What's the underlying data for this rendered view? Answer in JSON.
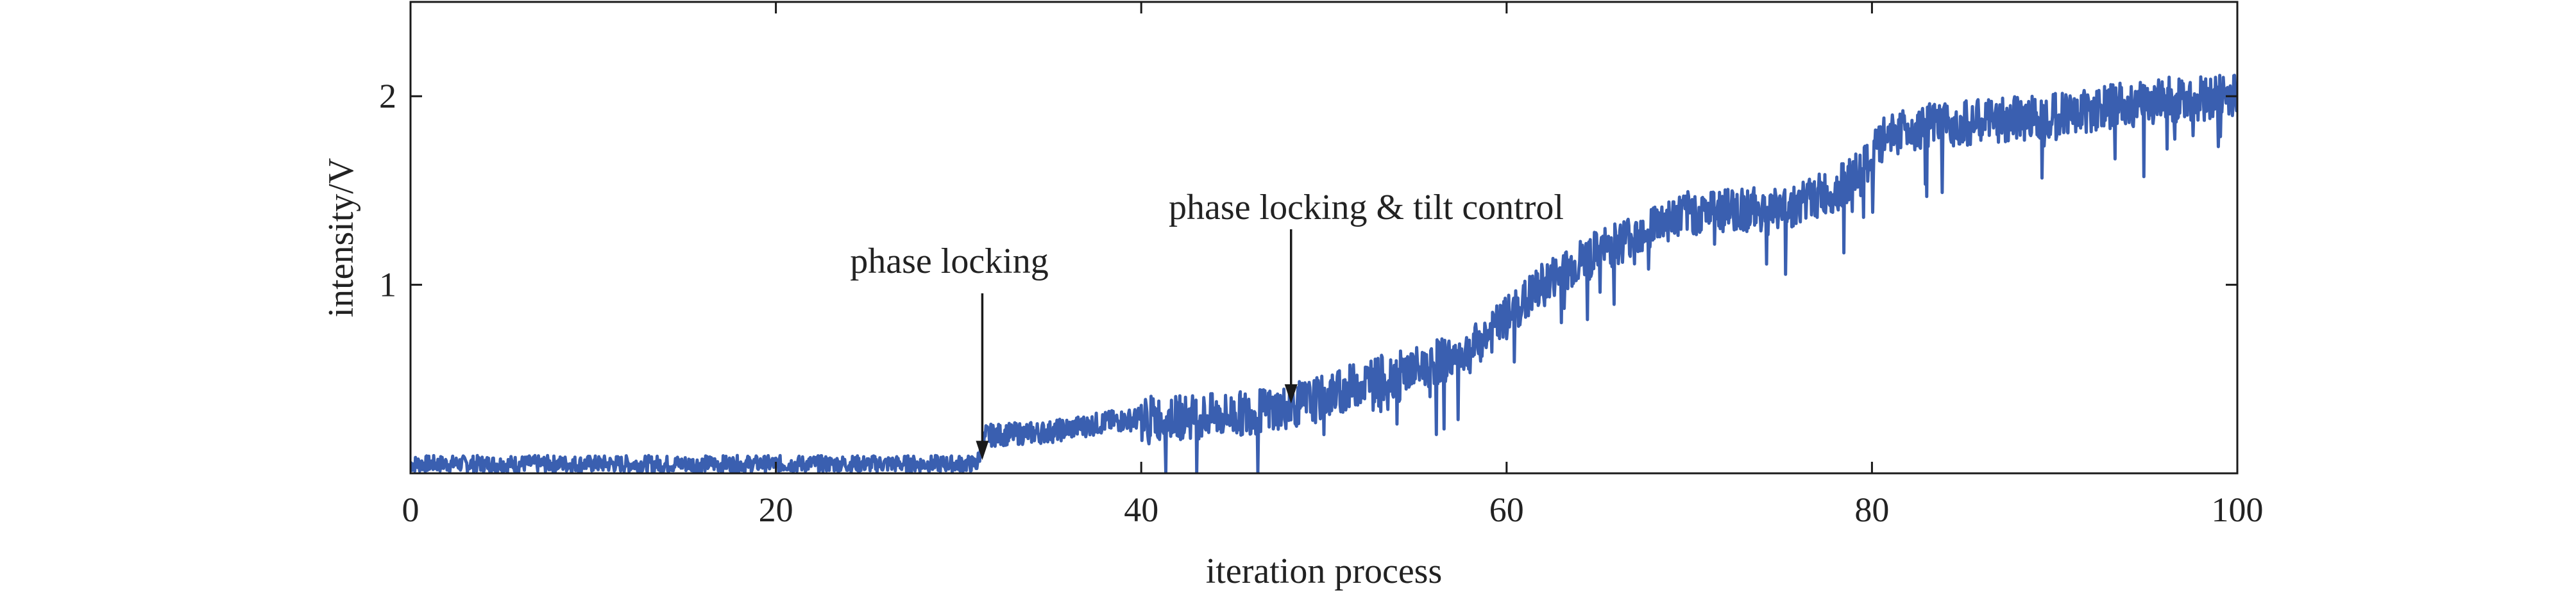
{
  "chart_data": {
    "type": "line",
    "title": "",
    "xlabel": "iteration process",
    "ylabel": "intensity/V",
    "xlim": [
      0,
      100
    ],
    "ylim": [
      0,
      2.5
    ],
    "xticks": [
      "0",
      "20",
      "40",
      "60",
      "80",
      "100"
    ],
    "yticks": [
      "1",
      "2"
    ],
    "grid": false,
    "legend": "none",
    "series_color": "#3a5fb0",
    "series": [
      {
        "noise_amplitude": 0.12,
        "x": [
          0,
          10,
          20,
          31,
          31.5,
          35,
          38,
          40,
          45,
          48,
          50,
          52,
          55,
          58,
          60,
          62,
          64,
          66,
          68,
          70,
          72,
          75,
          78,
          79.5,
          81,
          84,
          88,
          92,
          96,
          100
        ],
        "y": [
          0.05,
          0.05,
          0.05,
          0.05,
          0.2,
          0.22,
          0.27,
          0.29,
          0.31,
          0.35,
          0.4,
          0.48,
          0.55,
          0.65,
          0.82,
          1.0,
          1.12,
          1.22,
          1.32,
          1.38,
          1.4,
          1.4,
          1.5,
          1.6,
          1.82,
          1.85,
          1.88,
          1.93,
          1.98,
          2.0
        ]
      }
    ],
    "annotations": [
      {
        "text": "phase locking",
        "x": 31.3,
        "y": 0.05
      },
      {
        "text": "phase locking & tilt control",
        "x": 48.2,
        "y": 0.35
      }
    ]
  }
}
